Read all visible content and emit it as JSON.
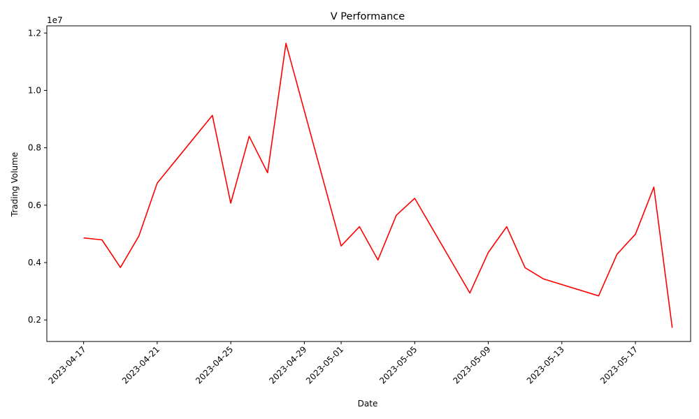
{
  "chart_data": {
    "type": "line",
    "title": "V Performance",
    "xlabel": "Date",
    "ylabel": "Trading Volume",
    "y_offset_label": "1e7",
    "ylim": [
      1250000,
      12250000
    ],
    "xlim": [
      "2023-04-15",
      "2023-05-20"
    ],
    "grid": false,
    "x_ticks": [
      "2023-04-17",
      "2023-04-21",
      "2023-04-25",
      "2023-04-29",
      "2023-05-01",
      "2023-05-05",
      "2023-05-09",
      "2023-05-13",
      "2023-05-17"
    ],
    "y_ticks": [
      {
        "value": 2000000,
        "label": "0.2"
      },
      {
        "value": 4000000,
        "label": "0.4"
      },
      {
        "value": 6000000,
        "label": "0.6"
      },
      {
        "value": 8000000,
        "label": "0.8"
      },
      {
        "value": 10000000,
        "label": "1.0"
      },
      {
        "value": 12000000,
        "label": "1.2"
      }
    ],
    "series": [
      {
        "color": "#ff0000",
        "points": [
          {
            "x": "2023-04-17",
            "y": 4860000
          },
          {
            "x": "2023-04-18",
            "y": 4790000
          },
          {
            "x": "2023-04-19",
            "y": 3830000
          },
          {
            "x": "2023-04-20",
            "y": 4920000
          },
          {
            "x": "2023-04-21",
            "y": 6770000
          },
          {
            "x": "2023-04-24",
            "y": 9130000
          },
          {
            "x": "2023-04-25",
            "y": 6070000
          },
          {
            "x": "2023-04-26",
            "y": 8400000
          },
          {
            "x": "2023-04-27",
            "y": 7130000
          },
          {
            "x": "2023-04-28",
            "y": 11640000
          },
          {
            "x": "2023-05-01",
            "y": 4580000
          },
          {
            "x": "2023-05-02",
            "y": 5250000
          },
          {
            "x": "2023-05-03",
            "y": 4090000
          },
          {
            "x": "2023-05-04",
            "y": 5650000
          },
          {
            "x": "2023-05-05",
            "y": 6240000
          },
          {
            "x": "2023-05-08",
            "y": 2940000
          },
          {
            "x": "2023-05-09",
            "y": 4350000
          },
          {
            "x": "2023-05-10",
            "y": 5250000
          },
          {
            "x": "2023-05-11",
            "y": 3820000
          },
          {
            "x": "2023-05-12",
            "y": 3430000
          },
          {
            "x": "2023-05-15",
            "y": 2840000
          },
          {
            "x": "2023-05-16",
            "y": 4290000
          },
          {
            "x": "2023-05-17",
            "y": 4990000
          },
          {
            "x": "2023-05-18",
            "y": 6630000
          },
          {
            "x": "2023-05-19",
            "y": 1730000
          }
        ]
      }
    ]
  }
}
